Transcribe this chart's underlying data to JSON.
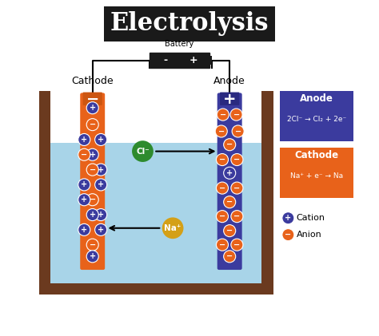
{
  "title": "Electrolysis",
  "title_bg": "#1a1a1a",
  "title_color": "white",
  "title_fontsize": 22,
  "background_color": "white",
  "battery_label": "Battery",
  "battery_minus": "-",
  "battery_plus": "+",
  "cathode_label": "Cathode",
  "anode_label": "Anode",
  "cathode_color": "#E8621A",
  "anode_color": "#3B3B9E",
  "tank_color": "#6B3A1F",
  "water_color": "#A8D4E8",
  "cl_ion_color": "#2E8B2E",
  "na_ion_color": "#D4A017",
  "cation_fill": "#3B3B9E",
  "anion_fill": "#E8621A",
  "anode_box_color": "#3B3B9E",
  "cathode_box_color": "#E8621A",
  "anode_eq": "2Cl⁻ → Cl₂ + 2e⁻",
  "cathode_eq": "Na⁺ + e⁻ → Na",
  "legend_cation": "Cation",
  "legend_anion": "Anion"
}
